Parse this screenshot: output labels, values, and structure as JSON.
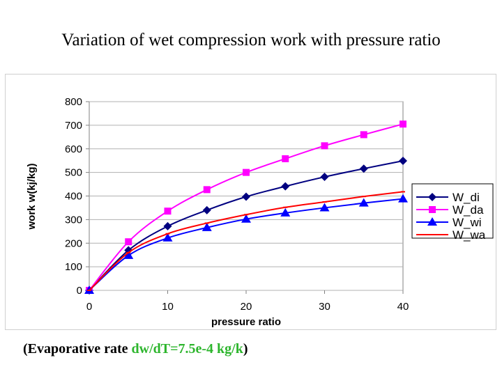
{
  "slide": {
    "title": "Variation of wet compression work with pressure ratio",
    "caption_open": "(Evaporative rate ",
    "caption_highlight": "dw/dT=7.5e-4 kg/k",
    "caption_close": ")",
    "highlight_color": "#2db52d"
  },
  "chart_data": {
    "type": "line",
    "title": "",
    "xlabel": "pressure ratio",
    "ylabel": "work w(kj/kg)",
    "xlim": [
      0,
      40
    ],
    "ylim": [
      0,
      800
    ],
    "xticks": [
      "0",
      "10",
      "20",
      "30",
      "40"
    ],
    "yticks": [
      "0",
      "100",
      "200",
      "300",
      "400",
      "500",
      "600",
      "700",
      "800"
    ],
    "grid": "horizontal",
    "legend_position": "right",
    "x": [
      0,
      5,
      10,
      15,
      20,
      25,
      30,
      35,
      40
    ],
    "series": [
      {
        "name": "W_di",
        "color": "#000080",
        "marker": "diamond",
        "values": [
          0,
          170,
          272,
          340,
          397,
          441,
          481,
          516,
          549
        ]
      },
      {
        "name": "W_da",
        "color": "#ff00ff",
        "marker": "square",
        "values": [
          0,
          206,
          336,
          427,
          500,
          558,
          613,
          660,
          705
        ]
      },
      {
        "name": "W_wi",
        "color": "#0000ff",
        "marker": "triangle",
        "values": [
          0,
          148,
          222,
          266,
          302,
          328,
          350,
          370,
          388
        ]
      },
      {
        "name": "W_wa",
        "color": "#ff0000",
        "marker": "line",
        "values": [
          0,
          160,
          240,
          285,
          321,
          352,
          375,
          398,
          418
        ]
      }
    ]
  }
}
